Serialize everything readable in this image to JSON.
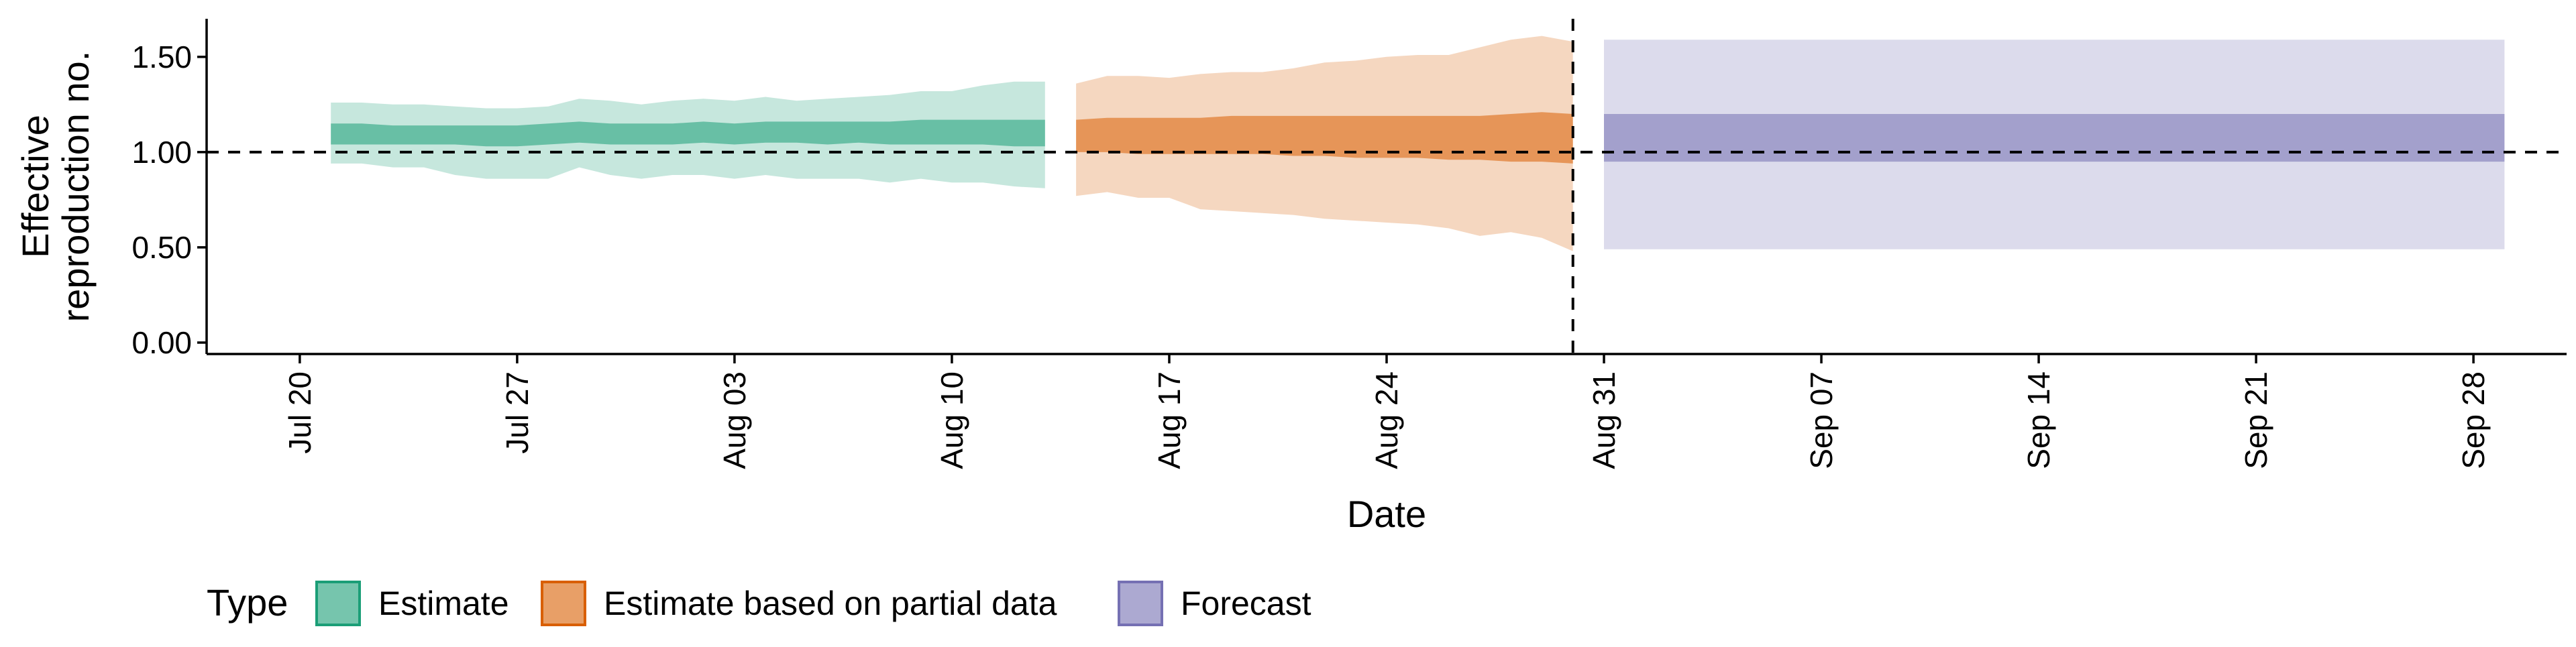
{
  "chart_data": {
    "type": "area",
    "xlabel": "Date",
    "ylabel_lines": [
      "Effective",
      "reproduction no."
    ],
    "y_ticks": [
      0.0,
      0.5,
      1.0,
      1.5
    ],
    "y_tick_labels": [
      "0.00",
      "0.50",
      "1.00",
      "1.50"
    ],
    "ylim": [
      -0.06,
      1.7
    ],
    "x_tick_dates": [
      "2020-07-20",
      "2020-07-27",
      "2020-08-03",
      "2020-08-10",
      "2020-08-17",
      "2020-08-24",
      "2020-08-31",
      "2020-09-07",
      "2020-09-14",
      "2020-09-21",
      "2020-09-28"
    ],
    "x_tick_labels": [
      "Jul 20",
      "Jul 27",
      "Aug 03",
      "Aug 10",
      "Aug 17",
      "Aug 24",
      "Aug 31",
      "Sep 07",
      "Sep 14",
      "Sep 21",
      "Sep 28"
    ],
    "xlim": [
      "2020-07-17",
      "2020-10-01"
    ],
    "reference_line_y": 1.0,
    "vline_date": "2020-08-30",
    "grid": false,
    "legend_position": "bottom-left",
    "legend_title": "Type",
    "series": [
      {
        "name": "Estimate",
        "color": "#1b9e77",
        "dates": [
          "2020-07-21",
          "2020-07-22",
          "2020-07-23",
          "2020-07-24",
          "2020-07-25",
          "2020-07-26",
          "2020-07-27",
          "2020-07-28",
          "2020-07-29",
          "2020-07-30",
          "2020-07-31",
          "2020-08-01",
          "2020-08-02",
          "2020-08-03",
          "2020-08-04",
          "2020-08-05",
          "2020-08-06",
          "2020-08-07",
          "2020-08-08",
          "2020-08-09",
          "2020-08-10",
          "2020-08-11",
          "2020-08-12",
          "2020-08-13"
        ],
        "lower_90": [
          0.94,
          0.94,
          0.92,
          0.92,
          0.88,
          0.86,
          0.86,
          0.86,
          0.92,
          0.88,
          0.86,
          0.88,
          0.88,
          0.86,
          0.88,
          0.86,
          0.86,
          0.86,
          0.84,
          0.86,
          0.84,
          0.84,
          0.82,
          0.81
        ],
        "upper_90": [
          1.26,
          1.26,
          1.25,
          1.25,
          1.24,
          1.23,
          1.23,
          1.24,
          1.28,
          1.27,
          1.25,
          1.27,
          1.28,
          1.27,
          1.29,
          1.27,
          1.28,
          1.29,
          1.3,
          1.32,
          1.32,
          1.35,
          1.37,
          1.37
        ],
        "lower_50": [
          1.04,
          1.04,
          1.04,
          1.04,
          1.04,
          1.03,
          1.03,
          1.04,
          1.05,
          1.04,
          1.04,
          1.04,
          1.05,
          1.04,
          1.05,
          1.05,
          1.04,
          1.05,
          1.04,
          1.04,
          1.04,
          1.04,
          1.03,
          1.03
        ],
        "upper_50": [
          1.15,
          1.15,
          1.14,
          1.14,
          1.14,
          1.14,
          1.14,
          1.15,
          1.16,
          1.15,
          1.15,
          1.15,
          1.16,
          1.15,
          1.16,
          1.16,
          1.16,
          1.16,
          1.16,
          1.17,
          1.17,
          1.17,
          1.17,
          1.17
        ]
      },
      {
        "name": "Estimate based on partial data",
        "color": "#d95f02",
        "dates": [
          "2020-08-14",
          "2020-08-15",
          "2020-08-16",
          "2020-08-17",
          "2020-08-18",
          "2020-08-19",
          "2020-08-20",
          "2020-08-21",
          "2020-08-22",
          "2020-08-23",
          "2020-08-24",
          "2020-08-25",
          "2020-08-26",
          "2020-08-27",
          "2020-08-28",
          "2020-08-29",
          "2020-08-30"
        ],
        "lower_90": [
          0.77,
          0.79,
          0.76,
          0.76,
          0.7,
          0.69,
          0.68,
          0.67,
          0.65,
          0.64,
          0.63,
          0.62,
          0.6,
          0.56,
          0.58,
          0.55,
          0.48
        ],
        "upper_90": [
          1.36,
          1.4,
          1.4,
          1.39,
          1.41,
          1.42,
          1.42,
          1.44,
          1.47,
          1.48,
          1.5,
          1.51,
          1.51,
          1.55,
          1.59,
          1.61,
          1.58
        ],
        "lower_50": [
          1.0,
          1.0,
          0.99,
          0.99,
          0.99,
          0.99,
          0.99,
          0.98,
          0.98,
          0.97,
          0.97,
          0.97,
          0.96,
          0.96,
          0.95,
          0.95,
          0.94
        ],
        "upper_50": [
          1.17,
          1.18,
          1.18,
          1.18,
          1.18,
          1.19,
          1.19,
          1.19,
          1.19,
          1.19,
          1.19,
          1.19,
          1.19,
          1.19,
          1.2,
          1.21,
          1.2
        ]
      },
      {
        "name": "Forecast",
        "color": "#7570b3",
        "dates": [
          "2020-08-31",
          "2020-09-29"
        ],
        "lower_90": [
          0.49,
          0.49
        ],
        "upper_90": [
          1.59,
          1.59
        ],
        "lower_50": [
          0.95,
          0.95
        ],
        "upper_50": [
          1.2,
          1.2
        ]
      }
    ]
  }
}
